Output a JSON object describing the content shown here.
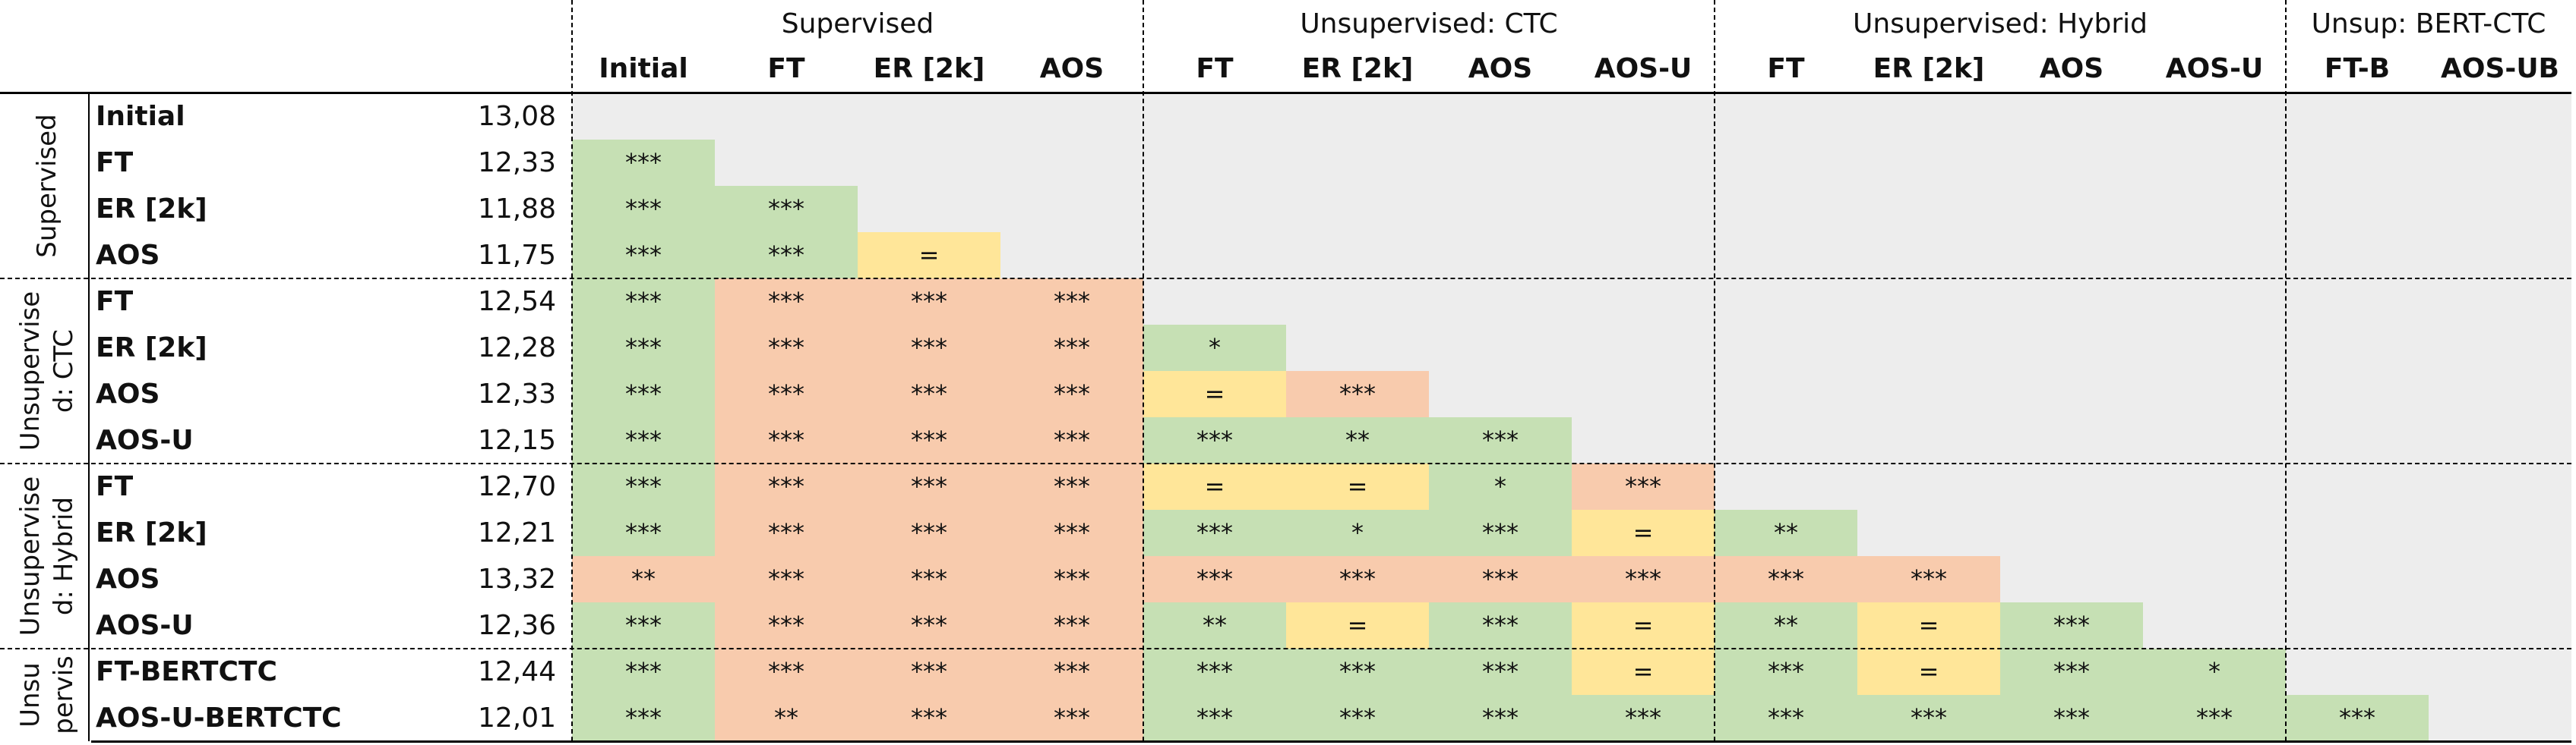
{
  "chart_data": {
    "type": "table",
    "title": "",
    "column_groups": [
      {
        "label": "Supervised",
        "span": 4
      },
      {
        "label": "Unsupervised: CTC",
        "span": 4
      },
      {
        "label": "Unsupervised: Hybrid",
        "span": 4
      },
      {
        "label": "Unsup: BERT-CTC",
        "span": 2
      }
    ],
    "columns": [
      "Initial",
      "FT",
      "ER [2k]",
      "AOS",
      "FT",
      "ER [2k]",
      "AOS",
      "AOS-U",
      "FT",
      "ER [2k]",
      "AOS",
      "AOS-U",
      "FT-B",
      "AOS-UB"
    ],
    "row_groups": [
      {
        "label": "Supervised",
        "rows": 4
      },
      {
        "label": "Unsupervise\nd: CTC",
        "rows": 4
      },
      {
        "label": "Unsupervise\nd: Hybrid",
        "rows": 4
      },
      {
        "label": "Unsu\npervis",
        "rows": 2
      }
    ],
    "rows": [
      {
        "label": "Initial",
        "value": "13,08",
        "cells": []
      },
      {
        "label": "FT",
        "value": "12,33",
        "cells": [
          [
            "***",
            "G"
          ]
        ]
      },
      {
        "label": "ER [2k]",
        "value": "11,88",
        "cells": [
          [
            "***",
            "G"
          ],
          [
            "***",
            "G"
          ]
        ]
      },
      {
        "label": "AOS",
        "value": "11,75",
        "cells": [
          [
            "***",
            "G"
          ],
          [
            "***",
            "G"
          ],
          [
            "=",
            "Y"
          ]
        ]
      },
      {
        "label": "FT",
        "value": "12,54",
        "cells": [
          [
            "***",
            "G"
          ],
          [
            "***",
            "R"
          ],
          [
            "***",
            "R"
          ],
          [
            "***",
            "R"
          ]
        ]
      },
      {
        "label": "ER [2k]",
        "value": "12,28",
        "cells": [
          [
            "***",
            "G"
          ],
          [
            "***",
            "R"
          ],
          [
            "***",
            "R"
          ],
          [
            "***",
            "R"
          ],
          [
            "*",
            "G"
          ]
        ]
      },
      {
        "label": "AOS",
        "value": "12,33",
        "cells": [
          [
            "***",
            "G"
          ],
          [
            "***",
            "R"
          ],
          [
            "***",
            "R"
          ],
          [
            "***",
            "R"
          ],
          [
            "=",
            "Y"
          ],
          [
            "***",
            "R"
          ]
        ]
      },
      {
        "label": "AOS-U",
        "value": "12,15",
        "cells": [
          [
            "***",
            "G"
          ],
          [
            "***",
            "R"
          ],
          [
            "***",
            "R"
          ],
          [
            "***",
            "R"
          ],
          [
            "***",
            "G"
          ],
          [
            "**",
            "G"
          ],
          [
            "***",
            "G"
          ]
        ]
      },
      {
        "label": "FT",
        "value": "12,70",
        "cells": [
          [
            "***",
            "G"
          ],
          [
            "***",
            "R"
          ],
          [
            "***",
            "R"
          ],
          [
            "***",
            "R"
          ],
          [
            "=",
            "Y"
          ],
          [
            "=",
            "Y"
          ],
          [
            "*",
            "G"
          ],
          [
            "***",
            "R"
          ]
        ]
      },
      {
        "label": "ER [2k]",
        "value": "12,21",
        "cells": [
          [
            "***",
            "G"
          ],
          [
            "***",
            "R"
          ],
          [
            "***",
            "R"
          ],
          [
            "***",
            "R"
          ],
          [
            "***",
            "G"
          ],
          [
            "*",
            "G"
          ],
          [
            "***",
            "G"
          ],
          [
            "=",
            "Y"
          ],
          [
            "**",
            "G"
          ]
        ]
      },
      {
        "label": "AOS",
        "value": "13,32",
        "cells": [
          [
            "**",
            "R"
          ],
          [
            "***",
            "R"
          ],
          [
            "***",
            "R"
          ],
          [
            "***",
            "R"
          ],
          [
            "***",
            "R"
          ],
          [
            "***",
            "R"
          ],
          [
            "***",
            "R"
          ],
          [
            "***",
            "R"
          ],
          [
            "***",
            "R"
          ],
          [
            "***",
            "R"
          ]
        ]
      },
      {
        "label": "AOS-U",
        "value": "12,36",
        "cells": [
          [
            "***",
            "G"
          ],
          [
            "***",
            "R"
          ],
          [
            "***",
            "R"
          ],
          [
            "***",
            "R"
          ],
          [
            "**",
            "G"
          ],
          [
            "=",
            "Y"
          ],
          [
            "***",
            "G"
          ],
          [
            "=",
            "Y"
          ],
          [
            "**",
            "G"
          ],
          [
            "=",
            "Y"
          ],
          [
            "***",
            "G"
          ]
        ]
      },
      {
        "label": "FT-BERTCTC",
        "value": "12,44",
        "cells": [
          [
            "***",
            "G"
          ],
          [
            "***",
            "R"
          ],
          [
            "***",
            "R"
          ],
          [
            "***",
            "R"
          ],
          [
            "***",
            "G"
          ],
          [
            "***",
            "G"
          ],
          [
            "***",
            "G"
          ],
          [
            "=",
            "Y"
          ],
          [
            "***",
            "G"
          ],
          [
            "=",
            "Y"
          ],
          [
            "***",
            "G"
          ],
          [
            "*",
            "G"
          ]
        ]
      },
      {
        "label": "AOS-U-BERTCTC",
        "value": "12,01",
        "cells": [
          [
            "***",
            "G"
          ],
          [
            "**",
            "R"
          ],
          [
            "***",
            "R"
          ],
          [
            "***",
            "R"
          ],
          [
            "***",
            "G"
          ],
          [
            "***",
            "G"
          ],
          [
            "***",
            "G"
          ],
          [
            "***",
            "G"
          ],
          [
            "***",
            "G"
          ],
          [
            "***",
            "G"
          ],
          [
            "***",
            "G"
          ],
          [
            "***",
            "G"
          ],
          [
            "***",
            "G"
          ]
        ]
      }
    ]
  },
  "colors": {
    "G": "#c6e0b4",
    "R": "#f8cbad",
    "Y": "#ffe699",
    "empty": "#ededed",
    "text": "#111111",
    "line": "#000000"
  }
}
